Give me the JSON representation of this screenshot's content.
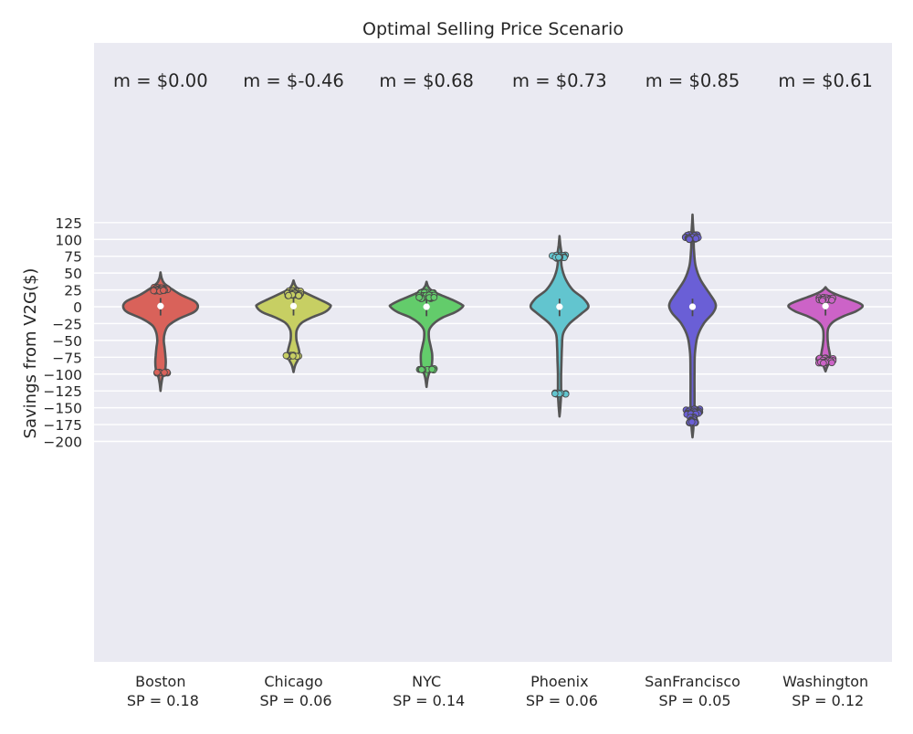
{
  "chart_data": {
    "type": "violin",
    "title": "Optimal Selling Price Scenario",
    "xlabel": "",
    "ylabel": "Savings from V2G($)",
    "ylim": [
      -210,
      155
    ],
    "yticks": [
      125,
      100,
      75,
      50,
      25,
      0,
      -25,
      -50,
      -75,
      -100,
      -125,
      -150,
      -175,
      -200
    ],
    "grid": true,
    "categories": [
      "Boston\n SP = 0.18",
      "Chicago\n SP = 0.06",
      "NYC\n SP = 0.14",
      "Phoenix\n SP = 0.06",
      "SanFrancisco\n SP = 0.05",
      "Washington\n SP = 0.12"
    ],
    "annotations": [
      "m = $0.00",
      "m = $-0.46",
      "m = $0.68",
      "m = $0.73",
      "m = $0.85",
      "m = $0.61"
    ],
    "colors": [
      "#d9625a",
      "#c7cf63",
      "#63cc6b",
      "#62c5cf",
      "#6a5fd6",
      "#cc63c7"
    ],
    "series": [
      {
        "min": -125,
        "max": 51,
        "median": 1,
        "profile": [
          [
            51,
            0.0
          ],
          [
            42,
            0.03
          ],
          [
            35,
            0.09
          ],
          [
            28,
            0.24
          ],
          [
            18,
            0.5
          ],
          [
            8,
            0.85
          ],
          [
            0,
            0.93
          ],
          [
            -8,
            0.83
          ],
          [
            -18,
            0.45
          ],
          [
            -28,
            0.2
          ],
          [
            -38,
            0.11
          ],
          [
            -50,
            0.08
          ],
          [
            -60,
            0.1
          ],
          [
            -72,
            0.12
          ],
          [
            -82,
            0.13
          ],
          [
            -92,
            0.12
          ],
          [
            -98,
            0.1
          ],
          [
            -105,
            0.05
          ],
          [
            -115,
            0.02
          ],
          [
            -125,
            0.0
          ]
        ],
        "points": [
          {
            "y": 28,
            "spread": 0.6
          },
          {
            "y": 26,
            "spread": 0.6
          },
          {
            "y": 24,
            "spread": 0.6
          },
          {
            "y": -98,
            "spread": 0.6
          }
        ]
      },
      {
        "min": -97,
        "max": 39,
        "median": 1,
        "profile": [
          [
            39,
            0.0
          ],
          [
            32,
            0.04
          ],
          [
            26,
            0.12
          ],
          [
            20,
            0.32
          ],
          [
            12,
            0.6
          ],
          [
            4,
            0.88
          ],
          [
            0,
            0.92
          ],
          [
            -8,
            0.78
          ],
          [
            -16,
            0.45
          ],
          [
            -24,
            0.2
          ],
          [
            -35,
            0.08
          ],
          [
            -48,
            0.07
          ],
          [
            -58,
            0.11
          ],
          [
            -66,
            0.14
          ],
          [
            -74,
            0.14
          ],
          [
            -80,
            0.1
          ],
          [
            -87,
            0.04
          ],
          [
            -97,
            0.0
          ]
        ],
        "points": [
          {
            "y": 23,
            "spread": 0.6
          },
          {
            "y": 20,
            "spread": 0.6
          },
          {
            "y": 17,
            "spread": 0.6
          },
          {
            "y": -73,
            "spread": 0.6
          }
        ]
      },
      {
        "min": -119,
        "max": 37,
        "median": 0,
        "profile": [
          [
            37,
            0.0
          ],
          [
            30,
            0.04
          ],
          [
            24,
            0.13
          ],
          [
            18,
            0.33
          ],
          [
            10,
            0.65
          ],
          [
            3,
            0.88
          ],
          [
            0,
            0.9
          ],
          [
            -8,
            0.72
          ],
          [
            -16,
            0.4
          ],
          [
            -24,
            0.2
          ],
          [
            -34,
            0.07
          ],
          [
            -46,
            0.06
          ],
          [
            -58,
            0.1
          ],
          [
            -70,
            0.14
          ],
          [
            -82,
            0.14
          ],
          [
            -90,
            0.12
          ],
          [
            -96,
            0.08
          ],
          [
            -106,
            0.03
          ],
          [
            -119,
            0.0
          ]
        ],
        "points": [
          {
            "y": 21,
            "spread": 0.6
          },
          {
            "y": 17,
            "spread": 0.6
          },
          {
            "y": 13,
            "spread": 0.6
          },
          {
            "y": -93,
            "spread": 0.6
          }
        ]
      },
      {
        "min": -163,
        "max": 105,
        "median": 0,
        "profile": [
          [
            105,
            0.0
          ],
          [
            92,
            0.02
          ],
          [
            78,
            0.05
          ],
          [
            68,
            0.04
          ],
          [
            55,
            0.07
          ],
          [
            40,
            0.16
          ],
          [
            25,
            0.33
          ],
          [
            12,
            0.6
          ],
          [
            0,
            0.72
          ],
          [
            -10,
            0.55
          ],
          [
            -25,
            0.25
          ],
          [
            -40,
            0.09
          ],
          [
            -60,
            0.06
          ],
          [
            -80,
            0.05
          ],
          [
            -100,
            0.04
          ],
          [
            -120,
            0.04
          ],
          [
            -130,
            0.04
          ],
          [
            -140,
            0.03
          ],
          [
            -150,
            0.02
          ],
          [
            -163,
            0.0
          ]
        ],
        "points": [
          {
            "y": 76,
            "spread": 0.6
          },
          {
            "y": 73,
            "spread": 0.6
          },
          {
            "y": -129,
            "spread": 0.5
          }
        ]
      },
      {
        "min": -194,
        "max": 137,
        "median": 0,
        "profile": [
          [
            137,
            0.0
          ],
          [
            115,
            0.02
          ],
          [
            103,
            0.04
          ],
          [
            95,
            0.03
          ],
          [
            80,
            0.04
          ],
          [
            60,
            0.08
          ],
          [
            40,
            0.2
          ],
          [
            20,
            0.42
          ],
          [
            8,
            0.55
          ],
          [
            0,
            0.58
          ],
          [
            -10,
            0.5
          ],
          [
            -25,
            0.28
          ],
          [
            -45,
            0.12
          ],
          [
            -70,
            0.06
          ],
          [
            -100,
            0.05
          ],
          [
            -130,
            0.05
          ],
          [
            -150,
            0.05
          ],
          [
            -158,
            0.05
          ],
          [
            -170,
            0.03
          ],
          [
            -182,
            0.02
          ],
          [
            -194,
            0.0
          ]
        ],
        "points": [
          {
            "y": 106,
            "spread": 0.6
          },
          {
            "y": 103,
            "spread": 0.6
          },
          {
            "y": 101,
            "spread": 0.6
          },
          {
            "y": -153,
            "spread": 0.6
          },
          {
            "y": -156,
            "spread": 0.6
          },
          {
            "y": -159,
            "spread": 0.5
          },
          {
            "y": -165,
            "spread": 0.2
          },
          {
            "y": -169,
            "spread": 0.2
          },
          {
            "y": -172,
            "spread": 0.3
          }
        ]
      },
      {
        "min": -96,
        "max": 29,
        "median": 1,
        "profile": [
          [
            29,
            0.0
          ],
          [
            24,
            0.08
          ],
          [
            18,
            0.28
          ],
          [
            12,
            0.55
          ],
          [
            5,
            0.85
          ],
          [
            0,
            0.92
          ],
          [
            -7,
            0.75
          ],
          [
            -14,
            0.45
          ],
          [
            -22,
            0.2
          ],
          [
            -32,
            0.07
          ],
          [
            -45,
            0.05
          ],
          [
            -58,
            0.07
          ],
          [
            -68,
            0.1
          ],
          [
            -76,
            0.12
          ],
          [
            -82,
            0.11
          ],
          [
            -88,
            0.05
          ],
          [
            -96,
            0.0
          ]
        ],
        "points": [
          {
            "y": 13,
            "spread": 0.6
          },
          {
            "y": 10,
            "spread": 0.6
          },
          {
            "y": -77,
            "spread": 0.6
          },
          {
            "y": -80,
            "spread": 0.6
          },
          {
            "y": -83,
            "spread": 0.6
          }
        ]
      }
    ]
  }
}
